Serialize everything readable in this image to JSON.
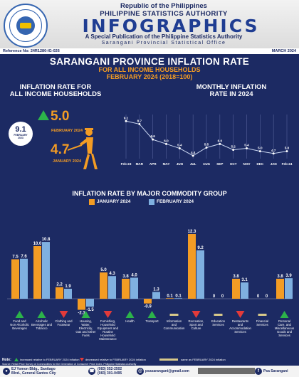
{
  "header": {
    "republic": "Republic of the Philippines",
    "agency": "PHILIPPINE STATISTICS AUTHORITY",
    "brand": "INFOGRAPHICS",
    "special": "A Special Publication of the Philippine Statistics Authority",
    "office": "Sarangani Provincial Statistical Office",
    "reference": "Reference No: 24R1280-IG-026",
    "month": "MARCH 2024"
  },
  "titles": {
    "main": "SARANGANI PROVINCE INFLATION RATE",
    "sub1": "FOR ALL INCOME HOUSEHOLDS",
    "sub2": "FEBRUARY 2024 (2018=100)",
    "left_section_1": "INFLATION RATE FOR",
    "left_section_2": "ALL INCOME HOUSEHOLDS",
    "right_section_1": "MONTHLY INFLATION",
    "right_section_2": "RATE IN 2024",
    "bar_section": "INFLATION RATE BY MAJOR COMMODITY GROUP"
  },
  "headline": {
    "feb2023_value": "9.1",
    "feb2023_label_1": "FEBRUARY",
    "feb2023_label_2": "2023",
    "feb2024_value": "5.0",
    "feb2024_label": "FEBRUARY 2024",
    "jan2024_value": "4.7",
    "jan2024_label": "JANUARY 2024"
  },
  "legend": {
    "jan": "JANUARY 2024",
    "feb": "FEBRUARY 2024"
  },
  "notes": {
    "note": "Note:",
    "up": "increased relative to FEBRUARY 2024 inflation",
    "down": "decreased relative to FEBRUARY 2024 inflation",
    "same": "same as FEBRUARY 2024 inflation"
  },
  "source": "Source: Retail Price Survey of Commodities for the Generation of Consumer Price Index, Philippine Statistics Authority",
  "footer": {
    "address_1": "EJ Yomon Bldg., Santiago",
    "address_2": "Blvd., General Santos City",
    "phone_1": "(083) 552-2502",
    "phone_2": "(083) 301-0495",
    "email": "psasarangani@gmail.com",
    "facebook": "Psa Sarangani"
  },
  "colors": {
    "background": "#1c2a63",
    "jan": "#f39c24",
    "feb": "#7fb0e0",
    "up": "#2cb34a",
    "down": "#e23a3a"
  },
  "chart_data": [
    {
      "type": "line",
      "x": [
        "Feb-23",
        "MAR",
        "APR",
        "MAY",
        "JUN",
        "JUL",
        "AUG",
        "SEP",
        "OCT",
        "NOV",
        "DEC",
        "JAN",
        "Feb-24"
      ],
      "values": [
        9.1,
        8.7,
        6.6,
        6.0,
        5.4,
        4.4,
        5.5,
        6.0,
        5.2,
        5.4,
        5.0,
        4.7,
        5.0
      ],
      "grid": true
    },
    {
      "type": "bar",
      "categories": [
        "Food and Non-Alcoholic Beverages",
        "Alcoholic Beverages and Tobacco",
        "Clothing and Footwear",
        "Housing, Water, Electricity, Gas and Other Fuels",
        "Furnishing, Household Equipment and Routine Household Maintenance",
        "Health",
        "Transport",
        "Information and Communication",
        "Recreation, Sport and Culture",
        "Education Services",
        "Restaurants and Accommodation Services",
        "Financial Services",
        "Personal Care, and Miscellaneous Goods and Services"
      ],
      "series": [
        {
          "name": "JANUARY 2024",
          "values": [
            7.5,
            10.0,
            2.2,
            -2.1,
            5.0,
            3.8,
            -0.9,
            0.1,
            12.3,
            0,
            3.8,
            0,
            3.8
          ]
        },
        {
          "name": "FEBRUARY 2024",
          "values": [
            7.6,
            10.8,
            1.9,
            -1.5,
            4.3,
            4.0,
            1.3,
            0.1,
            9.2,
            0,
            3.1,
            0,
            3.9
          ]
        }
      ],
      "labels": [
        [
          "7.5",
          "7.6"
        ],
        [
          "10.0",
          "10.8"
        ],
        [
          "2.2",
          "1.9"
        ],
        [
          "-2.1",
          "-1.5"
        ],
        [
          "5.0",
          "4.3"
        ],
        [
          "3.8",
          "4.0"
        ],
        [
          "-0.9",
          "1.3"
        ],
        [
          "0.1",
          "0.1"
        ],
        [
          "12.3",
          "9.2"
        ],
        [
          "0",
          "0"
        ],
        [
          "3.8",
          "3.1"
        ],
        [
          "0",
          "0"
        ],
        [
          "3.8",
          "3.9"
        ]
      ],
      "direction": [
        "up",
        "up",
        "down",
        "up",
        "down",
        "up",
        "up",
        "same",
        "down",
        "same",
        "down",
        "same",
        "up"
      ],
      "legend": "top"
    }
  ]
}
